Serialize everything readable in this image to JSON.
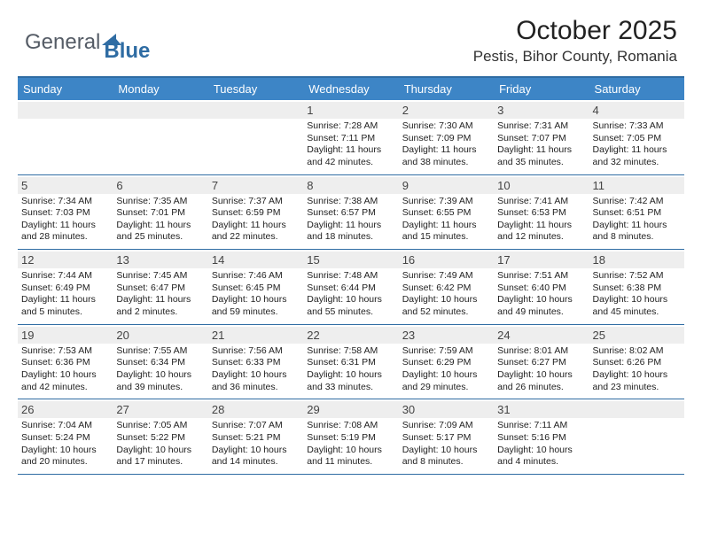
{
  "brand": {
    "general": "General",
    "blue": "Blue"
  },
  "title": {
    "month": "October 2025",
    "location": "Pestis, Bihor County, Romania"
  },
  "colors": {
    "header_bar": "#3d85c6",
    "rule": "#2f6ca3",
    "daynum_bg": "#eeeeee"
  },
  "weekdays": [
    "Sunday",
    "Monday",
    "Tuesday",
    "Wednesday",
    "Thursday",
    "Friday",
    "Saturday"
  ],
  "weeks": [
    [
      {
        "n": "",
        "sunrise": "",
        "sunset": "",
        "daylight": ""
      },
      {
        "n": "",
        "sunrise": "",
        "sunset": "",
        "daylight": ""
      },
      {
        "n": "",
        "sunrise": "",
        "sunset": "",
        "daylight": ""
      },
      {
        "n": "1",
        "sunrise": "Sunrise: 7:28 AM",
        "sunset": "Sunset: 7:11 PM",
        "daylight": "Daylight: 11 hours and 42 minutes."
      },
      {
        "n": "2",
        "sunrise": "Sunrise: 7:30 AM",
        "sunset": "Sunset: 7:09 PM",
        "daylight": "Daylight: 11 hours and 38 minutes."
      },
      {
        "n": "3",
        "sunrise": "Sunrise: 7:31 AM",
        "sunset": "Sunset: 7:07 PM",
        "daylight": "Daylight: 11 hours and 35 minutes."
      },
      {
        "n": "4",
        "sunrise": "Sunrise: 7:33 AM",
        "sunset": "Sunset: 7:05 PM",
        "daylight": "Daylight: 11 hours and 32 minutes."
      }
    ],
    [
      {
        "n": "5",
        "sunrise": "Sunrise: 7:34 AM",
        "sunset": "Sunset: 7:03 PM",
        "daylight": "Daylight: 11 hours and 28 minutes."
      },
      {
        "n": "6",
        "sunrise": "Sunrise: 7:35 AM",
        "sunset": "Sunset: 7:01 PM",
        "daylight": "Daylight: 11 hours and 25 minutes."
      },
      {
        "n": "7",
        "sunrise": "Sunrise: 7:37 AM",
        "sunset": "Sunset: 6:59 PM",
        "daylight": "Daylight: 11 hours and 22 minutes."
      },
      {
        "n": "8",
        "sunrise": "Sunrise: 7:38 AM",
        "sunset": "Sunset: 6:57 PM",
        "daylight": "Daylight: 11 hours and 18 minutes."
      },
      {
        "n": "9",
        "sunrise": "Sunrise: 7:39 AM",
        "sunset": "Sunset: 6:55 PM",
        "daylight": "Daylight: 11 hours and 15 minutes."
      },
      {
        "n": "10",
        "sunrise": "Sunrise: 7:41 AM",
        "sunset": "Sunset: 6:53 PM",
        "daylight": "Daylight: 11 hours and 12 minutes."
      },
      {
        "n": "11",
        "sunrise": "Sunrise: 7:42 AM",
        "sunset": "Sunset: 6:51 PM",
        "daylight": "Daylight: 11 hours and 8 minutes."
      }
    ],
    [
      {
        "n": "12",
        "sunrise": "Sunrise: 7:44 AM",
        "sunset": "Sunset: 6:49 PM",
        "daylight": "Daylight: 11 hours and 5 minutes."
      },
      {
        "n": "13",
        "sunrise": "Sunrise: 7:45 AM",
        "sunset": "Sunset: 6:47 PM",
        "daylight": "Daylight: 11 hours and 2 minutes."
      },
      {
        "n": "14",
        "sunrise": "Sunrise: 7:46 AM",
        "sunset": "Sunset: 6:45 PM",
        "daylight": "Daylight: 10 hours and 59 minutes."
      },
      {
        "n": "15",
        "sunrise": "Sunrise: 7:48 AM",
        "sunset": "Sunset: 6:44 PM",
        "daylight": "Daylight: 10 hours and 55 minutes."
      },
      {
        "n": "16",
        "sunrise": "Sunrise: 7:49 AM",
        "sunset": "Sunset: 6:42 PM",
        "daylight": "Daylight: 10 hours and 52 minutes."
      },
      {
        "n": "17",
        "sunrise": "Sunrise: 7:51 AM",
        "sunset": "Sunset: 6:40 PM",
        "daylight": "Daylight: 10 hours and 49 minutes."
      },
      {
        "n": "18",
        "sunrise": "Sunrise: 7:52 AM",
        "sunset": "Sunset: 6:38 PM",
        "daylight": "Daylight: 10 hours and 45 minutes."
      }
    ],
    [
      {
        "n": "19",
        "sunrise": "Sunrise: 7:53 AM",
        "sunset": "Sunset: 6:36 PM",
        "daylight": "Daylight: 10 hours and 42 minutes."
      },
      {
        "n": "20",
        "sunrise": "Sunrise: 7:55 AM",
        "sunset": "Sunset: 6:34 PM",
        "daylight": "Daylight: 10 hours and 39 minutes."
      },
      {
        "n": "21",
        "sunrise": "Sunrise: 7:56 AM",
        "sunset": "Sunset: 6:33 PM",
        "daylight": "Daylight: 10 hours and 36 minutes."
      },
      {
        "n": "22",
        "sunrise": "Sunrise: 7:58 AM",
        "sunset": "Sunset: 6:31 PM",
        "daylight": "Daylight: 10 hours and 33 minutes."
      },
      {
        "n": "23",
        "sunrise": "Sunrise: 7:59 AM",
        "sunset": "Sunset: 6:29 PM",
        "daylight": "Daylight: 10 hours and 29 minutes."
      },
      {
        "n": "24",
        "sunrise": "Sunrise: 8:01 AM",
        "sunset": "Sunset: 6:27 PM",
        "daylight": "Daylight: 10 hours and 26 minutes."
      },
      {
        "n": "25",
        "sunrise": "Sunrise: 8:02 AM",
        "sunset": "Sunset: 6:26 PM",
        "daylight": "Daylight: 10 hours and 23 minutes."
      }
    ],
    [
      {
        "n": "26",
        "sunrise": "Sunrise: 7:04 AM",
        "sunset": "Sunset: 5:24 PM",
        "daylight": "Daylight: 10 hours and 20 minutes."
      },
      {
        "n": "27",
        "sunrise": "Sunrise: 7:05 AM",
        "sunset": "Sunset: 5:22 PM",
        "daylight": "Daylight: 10 hours and 17 minutes."
      },
      {
        "n": "28",
        "sunrise": "Sunrise: 7:07 AM",
        "sunset": "Sunset: 5:21 PM",
        "daylight": "Daylight: 10 hours and 14 minutes."
      },
      {
        "n": "29",
        "sunrise": "Sunrise: 7:08 AM",
        "sunset": "Sunset: 5:19 PM",
        "daylight": "Daylight: 10 hours and 11 minutes."
      },
      {
        "n": "30",
        "sunrise": "Sunrise: 7:09 AM",
        "sunset": "Sunset: 5:17 PM",
        "daylight": "Daylight: 10 hours and 8 minutes."
      },
      {
        "n": "31",
        "sunrise": "Sunrise: 7:11 AM",
        "sunset": "Sunset: 5:16 PM",
        "daylight": "Daylight: 10 hours and 4 minutes."
      },
      {
        "n": "",
        "sunrise": "",
        "sunset": "",
        "daylight": ""
      }
    ]
  ]
}
